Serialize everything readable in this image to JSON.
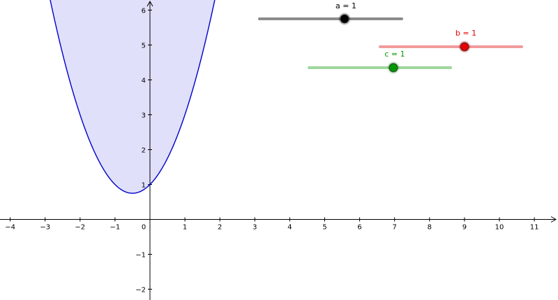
{
  "graphics_view": {
    "x_axis": {
      "range": [
        -4.3,
        11.6
      ],
      "tick_labels": [
        "−4",
        "−3",
        "−2",
        "−1",
        "0",
        "1",
        "2",
        "3",
        "4",
        "5",
        "6",
        "7",
        "8",
        "9",
        "10",
        "11"
      ],
      "tick_values": [
        -4,
        -3,
        -2,
        -1,
        0,
        1,
        2,
        3,
        4,
        5,
        6,
        7,
        8,
        9,
        10,
        11
      ]
    },
    "y_axis": {
      "range": [
        -2.3,
        6.3
      ],
      "tick_labels": [
        "−2",
        "−1",
        "1",
        "2",
        "3",
        "4",
        "5",
        "6"
      ],
      "tick_values": [
        -2,
        -1,
        1,
        2,
        3,
        4,
        5,
        6
      ]
    },
    "function": {
      "formula": "f(x) = a·x² + b·x + c",
      "coefficients": {
        "a": 1,
        "b": 1,
        "c": 1
      },
      "curve_color": "#0000cc",
      "fill_color": "#e0e0fa"
    }
  },
  "sliders": [
    {
      "id": "a",
      "label": "a = 1",
      "value": 1,
      "color": "#000000",
      "track_color": "#8c8c8c",
      "handle_fill": "#000000"
    },
    {
      "id": "b",
      "label": "b = 1",
      "value": 1,
      "color": "#e60000",
      "track_color": "#f29b9b",
      "handle_fill": "#e60000"
    },
    {
      "id": "c",
      "label": "c = 1",
      "value": 1,
      "color": "#009900",
      "track_color": "#9ed79e",
      "handle_fill": "#009900"
    }
  ]
}
